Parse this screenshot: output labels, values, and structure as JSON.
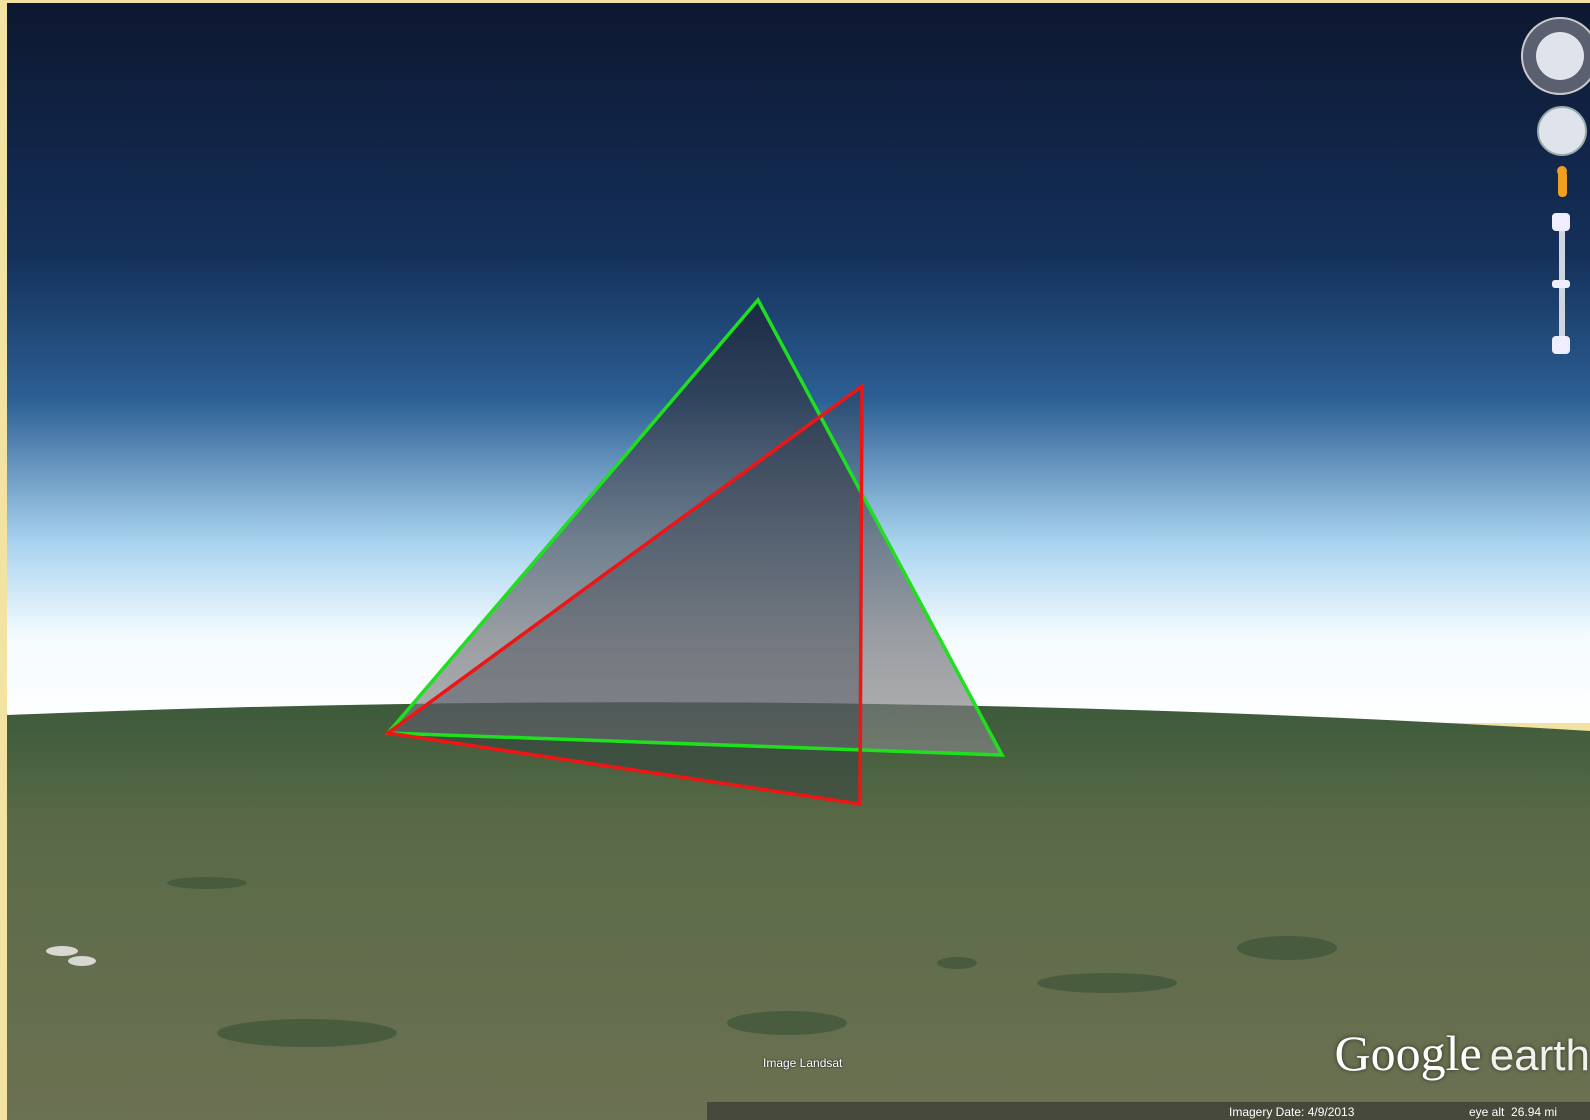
{
  "attribution": "Image Landsat",
  "logo": {
    "brand": "Google",
    "product": "earth"
  },
  "status": {
    "imagery_date": "Imagery Date: 4/9/2013",
    "eye_alt": "eye alt  26.94 mi"
  }
}
